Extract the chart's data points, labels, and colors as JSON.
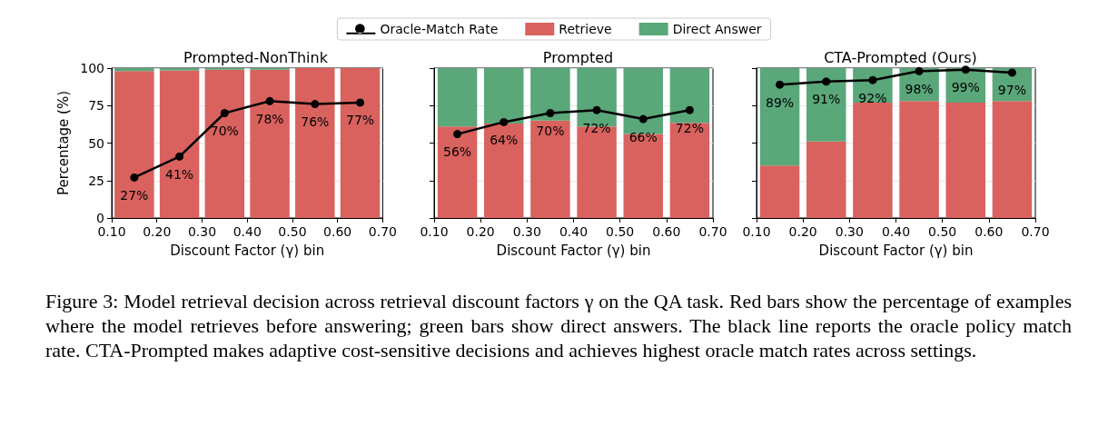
{
  "chart_data": [
    {
      "type": "bar",
      "title": "Prompted-NonThink",
      "xlabel": "Discount Factor (γ) bin",
      "ylabel": "Percentage (%)",
      "stacked": true,
      "x": [
        0.15,
        0.25,
        0.35,
        0.45,
        0.55,
        0.65
      ],
      "series": [
        {
          "type": "line",
          "color": "#000000",
          "values": [
            27,
            41,
            70,
            78,
            76,
            77
          ],
          "value_labels": [
            "27%",
            "41%",
            "70%",
            "78%",
            "76%",
            "77%"
          ]
        },
        {
          "color": "#d9625e",
          "values": [
            98,
            98.5,
            99,
            99,
            100,
            100
          ]
        },
        {
          "color": "#5aa77a",
          "values": [
            2,
            1.5,
            1,
            1,
            0,
            0
          ]
        }
      ],
      "xlim": [
        0.1,
        0.7
      ],
      "xticks": [
        {
          "value": 0.1,
          "label": "0.10"
        },
        {
          "value": 0.2,
          "label": "0.20"
        },
        {
          "value": 0.3,
          "label": "0.30"
        },
        {
          "value": 0.4,
          "label": "0.40"
        },
        {
          "value": 0.5,
          "label": "0.50"
        },
        {
          "value": 0.6,
          "label": "0.60"
        },
        {
          "value": 0.7,
          "label": "0.70"
        }
      ],
      "ylim": [
        0,
        100
      ],
      "yticks": [
        0,
        25,
        50,
        75,
        100
      ],
      "grid": "y",
      "marker": "circle",
      "legend": false,
      "annotations": [
        "Figure 3: Model retrieval decision across retrieval discount factors γ on the QA task. Red bars show the percentage of examples where the model retrieves before answering; green bars show direct answers. The black line reports the oracle policy match rate. CTA-Prompted makes adaptive cost-sensitive decisions and achieves highest oracle match rates across settings."
      ]
    },
    {
      "type": "bar",
      "title": "Prompted",
      "xlabel": "Discount Factor (γ) bin",
      "stacked": true,
      "x": [
        0.15,
        0.25,
        0.35,
        0.45,
        0.55,
        0.65
      ],
      "series": [
        {
          "name": "Oracle-Match Rate",
          "type": "line",
          "color": "#000000",
          "values": [
            56,
            64,
            70,
            72,
            66,
            72
          ],
          "value_labels": [
            "56%",
            "64%",
            "70%",
            "72%",
            "66%",
            "72%"
          ]
        },
        {
          "name": "Retrieve",
          "color": "#d9625e",
          "values": [
            61,
            63,
            65,
            61,
            56,
            63.5
          ]
        },
        {
          "name": "Direct Answer",
          "color": "#5aa77a",
          "values": [
            39,
            37,
            35,
            39,
            44,
            36.5
          ]
        }
      ],
      "xlim": [
        0.1,
        0.7
      ],
      "xticks": [
        {
          "value": 0.1,
          "label": "0.10"
        },
        {
          "value": 0.2,
          "label": "0.20"
        },
        {
          "value": 0.3,
          "label": "0.30"
        },
        {
          "value": 0.4,
          "label": "0.40"
        },
        {
          "value": 0.5,
          "label": "0.50"
        },
        {
          "value": 0.6,
          "label": "0.60"
        },
        {
          "value": 0.7,
          "label": "0.70"
        }
      ],
      "ylim": [
        0,
        100
      ],
      "yticks": [
        0,
        25,
        50,
        75,
        100
      ],
      "tick_labels": "x",
      "grid": "y",
      "marker": "circle",
      "legend": "top"
    },
    {
      "type": "bar",
      "title": "CTA-Prompted (Ours)",
      "xlabel": "Discount Factor (γ) bin",
      "stacked": true,
      "x": [
        0.15,
        0.25,
        0.35,
        0.45,
        0.55,
        0.65
      ],
      "series": [
        {
          "type": "line",
          "color": "#000000",
          "values": [
            89,
            91,
            92,
            98,
            99,
            97
          ],
          "value_labels": [
            "89%",
            "91%",
            "92%",
            "98%",
            "99%",
            "97%"
          ]
        },
        {
          "color": "#d9625e",
          "values": [
            35,
            51,
            77,
            78,
            77,
            78
          ]
        },
        {
          "color": "#5aa77a",
          "values": [
            65,
            49,
            23,
            22,
            23,
            22
          ]
        }
      ],
      "xlim": [
        0.1,
        0.7
      ],
      "xticks": [
        {
          "value": 0.1,
          "label": "0.10"
        },
        {
          "value": 0.2,
          "label": "0.20"
        },
        {
          "value": 0.3,
          "label": "0.30"
        },
        {
          "value": 0.4,
          "label": "0.40"
        },
        {
          "value": 0.5,
          "label": "0.50"
        },
        {
          "value": 0.6,
          "label": "0.60"
        },
        {
          "value": 0.7,
          "label": "0.70"
        }
      ],
      "ylim": [
        0,
        100
      ],
      "yticks": [
        0,
        25,
        50,
        75,
        100
      ],
      "tick_labels": "x",
      "grid": "y",
      "marker": "circle",
      "legend": false
    }
  ]
}
